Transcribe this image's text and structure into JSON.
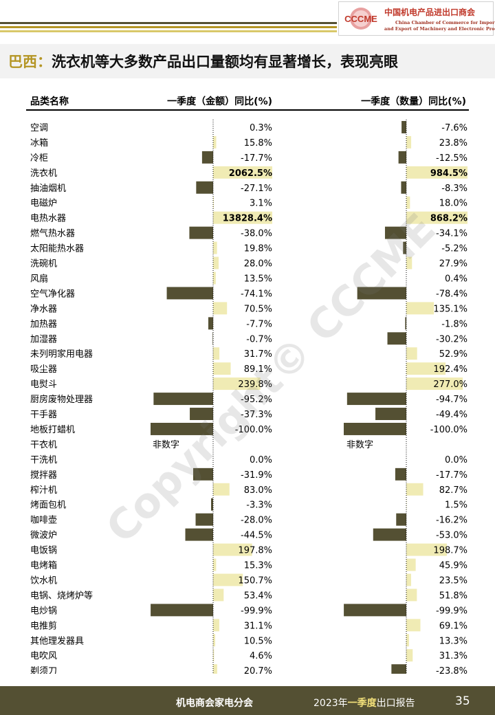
{
  "header": {
    "logo_mark": "CCCME",
    "logo_name_cn": "中国机电产品进出口商会",
    "logo_name_en_line1": "China Chamber of Commerce for Import",
    "logo_name_en_line2": "and Export of Machinery and Electronic Products",
    "stripe_colors": [
      "#545033",
      "#b49524",
      "#d9c86a"
    ]
  },
  "title": {
    "country": "巴西：",
    "text": "洗衣机等大多数产品出口量额均有显著增长，表现亮眼"
  },
  "watermark": "Copyright© CCCME",
  "colors": {
    "positive_bar": "#f0ebb4",
    "negative_bar": "#545033",
    "axis": "#000000"
  },
  "chart_data": {
    "type": "bar",
    "orientation": "horizontal",
    "category_header": "品类名称",
    "columns": [
      {
        "header": "一季度（金额）同比(%)",
        "axis_range": [
          -100,
          300
        ]
      },
      {
        "header": "一季度（数量）同比(%)",
        "axis_range": [
          -100,
          300
        ]
      }
    ],
    "non_numeric_label": "非数字",
    "rows": [
      {
        "category": "空调",
        "amount": "0.3%",
        "amount_value": 0.3,
        "quantity": "-7.6%",
        "quantity_value": -7.6
      },
      {
        "category": "冰箱",
        "amount": "15.8%",
        "amount_value": 15.8,
        "quantity": "23.8%",
        "quantity_value": 23.8
      },
      {
        "category": "冷柜",
        "amount": "-17.7%",
        "amount_value": -17.7,
        "quantity": "-12.5%",
        "quantity_value": -12.5
      },
      {
        "category": "洗衣机",
        "amount": "2062.5%",
        "amount_value": 2062.5,
        "quantity": "984.5%",
        "quantity_value": 984.5
      },
      {
        "category": "抽油烟机",
        "amount": "-27.1%",
        "amount_value": -27.1,
        "quantity": "-8.3%",
        "quantity_value": -8.3
      },
      {
        "category": "电磁炉",
        "amount": "3.1%",
        "amount_value": 3.1,
        "quantity": "18.0%",
        "quantity_value": 18.0
      },
      {
        "category": "电热水器",
        "amount": "13828.4%",
        "amount_value": 13828.4,
        "quantity": "868.2%",
        "quantity_value": 868.2
      },
      {
        "category": "燃气热水器",
        "amount": "-38.0%",
        "amount_value": -38.0,
        "quantity": "-34.1%",
        "quantity_value": -34.1
      },
      {
        "category": "太阳能热水器",
        "amount": "19.8%",
        "amount_value": 19.8,
        "quantity": "-5.2%",
        "quantity_value": -5.2
      },
      {
        "category": "洗碗机",
        "amount": "28.0%",
        "amount_value": 28.0,
        "quantity": "27.9%",
        "quantity_value": 27.9
      },
      {
        "category": "风扇",
        "amount": "13.5%",
        "amount_value": 13.5,
        "quantity": "0.4%",
        "quantity_value": 0.4
      },
      {
        "category": "空气净化器",
        "amount": "-74.1%",
        "amount_value": -74.1,
        "quantity": "-78.4%",
        "quantity_value": -78.4
      },
      {
        "category": "净水器",
        "amount": "70.5%",
        "amount_value": 70.5,
        "quantity": "135.1%",
        "quantity_value": 135.1
      },
      {
        "category": "加热器",
        "amount": "-7.7%",
        "amount_value": -7.7,
        "quantity": "-1.8%",
        "quantity_value": -1.8
      },
      {
        "category": "加湿器",
        "amount": "-0.7%",
        "amount_value": -0.7,
        "quantity": "-30.2%",
        "quantity_value": -30.2
      },
      {
        "category": "未列明家用电器",
        "amount": "31.7%",
        "amount_value": 31.7,
        "quantity": "52.9%",
        "quantity_value": 52.9
      },
      {
        "category": "吸尘器",
        "amount": "89.1%",
        "amount_value": 89.1,
        "quantity": "192.4%",
        "quantity_value": 192.4
      },
      {
        "category": "电熨斗",
        "amount": "239.8%",
        "amount_value": 239.8,
        "quantity": "277.0%",
        "quantity_value": 277.0
      },
      {
        "category": "厨房废物处理器",
        "amount": "-95.2%",
        "amount_value": -95.2,
        "quantity": "-94.7%",
        "quantity_value": -94.7
      },
      {
        "category": "干手器",
        "amount": "-37.3%",
        "amount_value": -37.3,
        "quantity": "-49.4%",
        "quantity_value": -49.4
      },
      {
        "category": "地板打蜡机",
        "amount": "-100.0%",
        "amount_value": -100.0,
        "quantity": "-100.0%",
        "quantity_value": -100.0
      },
      {
        "category": "干衣机",
        "amount": "非数字",
        "amount_value": null,
        "quantity": "非数字",
        "quantity_value": null
      },
      {
        "category": "干洗机",
        "amount": "0.0%",
        "amount_value": 0.0,
        "quantity": "0.0%",
        "quantity_value": 0.0
      },
      {
        "category": "搅拌器",
        "amount": "-31.9%",
        "amount_value": -31.9,
        "quantity": "-17.7%",
        "quantity_value": -17.7
      },
      {
        "category": "榨汁机",
        "amount": "83.0%",
        "amount_value": 83.0,
        "quantity": "82.7%",
        "quantity_value": 82.7
      },
      {
        "category": "烤面包机",
        "amount": "-3.3%",
        "amount_value": -3.3,
        "quantity": "1.5%",
        "quantity_value": 1.5
      },
      {
        "category": "咖啡壶",
        "amount": "-28.0%",
        "amount_value": -28.0,
        "quantity": "-16.2%",
        "quantity_value": -16.2
      },
      {
        "category": "微波炉",
        "amount": "-44.5%",
        "amount_value": -44.5,
        "quantity": "-53.0%",
        "quantity_value": -53.0
      },
      {
        "category": "电饭锅",
        "amount": "197.8%",
        "amount_value": 197.8,
        "quantity": "198.7%",
        "quantity_value": 198.7
      },
      {
        "category": "电烤箱",
        "amount": "15.3%",
        "amount_value": 15.3,
        "quantity": "45.9%",
        "quantity_value": 45.9
      },
      {
        "category": "饮水机",
        "amount": "150.7%",
        "amount_value": 150.7,
        "quantity": "23.5%",
        "quantity_value": 23.5
      },
      {
        "category": "电锅、烧烤炉等",
        "amount": "53.4%",
        "amount_value": 53.4,
        "quantity": "51.8%",
        "quantity_value": 51.8
      },
      {
        "category": "电炒锅",
        "amount": "-99.9%",
        "amount_value": -99.9,
        "quantity": "-99.9%",
        "quantity_value": -99.9
      },
      {
        "category": "电推剪",
        "amount": "31.1%",
        "amount_value": 31.1,
        "quantity": "69.1%",
        "quantity_value": 69.1
      },
      {
        "category": "其他理发器具",
        "amount": "10.5%",
        "amount_value": 10.5,
        "quantity": "13.3%",
        "quantity_value": 13.3
      },
      {
        "category": "电吹风",
        "amount": "4.6%",
        "amount_value": 4.6,
        "quantity": "31.3%",
        "quantity_value": 31.3
      },
      {
        "category": "剃须刀",
        "amount": "20.7%",
        "amount_value": 20.7,
        "quantity": "-23.8%",
        "quantity_value": -23.8
      }
    ]
  },
  "footer": {
    "org": "机电商会家电分会",
    "report_prefix": "2023年",
    "report_highlight": "一季度",
    "report_suffix": "出口报告",
    "page": "35"
  }
}
